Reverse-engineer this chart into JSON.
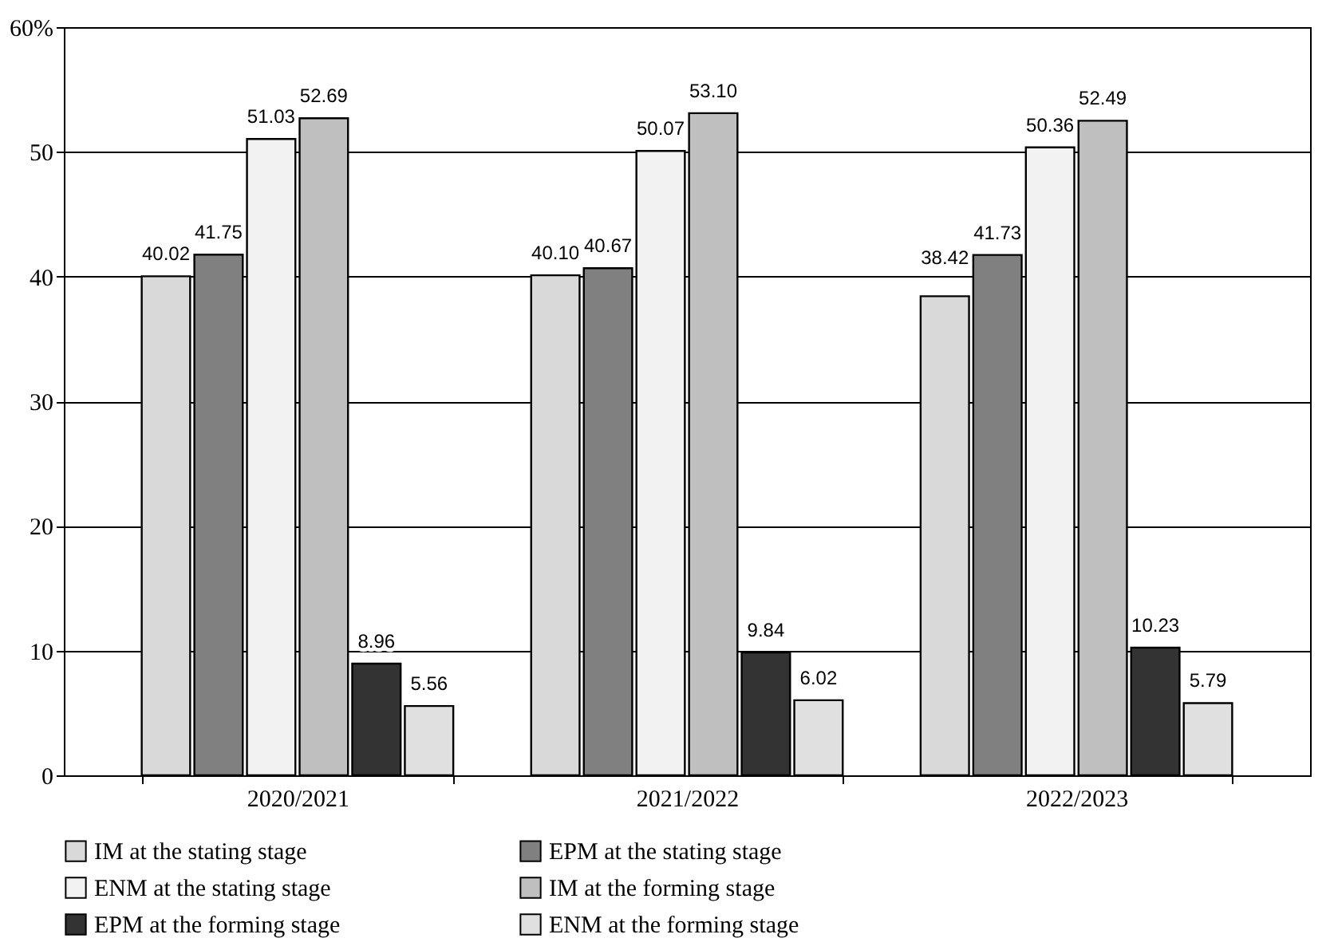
{
  "chart_data": {
    "type": "bar",
    "categories": [
      "2020/2021",
      "2021/2022",
      "2022/2023"
    ],
    "series": [
      {
        "name": "IM at the stating stage",
        "color": "#d9d9d9",
        "values": [
          40.02,
          40.1,
          38.42
        ],
        "value_labels": [
          "40.02",
          "40.10",
          "38.42"
        ]
      },
      {
        "name": "EPM at the stating stage",
        "color": "#808080",
        "values": [
          41.75,
          40.67,
          41.73
        ],
        "value_labels": [
          "41.75",
          "40.67",
          "41.73"
        ]
      },
      {
        "name": "ENM at the stating stage",
        "color": "#f2f2f2",
        "values": [
          51.03,
          50.07,
          50.36
        ],
        "value_labels": [
          "51.03",
          "50.07",
          "50.36"
        ]
      },
      {
        "name": "IM at the forming stage",
        "color": "#bfbfbf",
        "values": [
          52.69,
          53.1,
          52.49
        ],
        "value_labels": [
          "52.69",
          "53.10",
          "52.49"
        ]
      },
      {
        "name": "EPM at the forming stage",
        "color": "#333333",
        "values": [
          8.96,
          9.84,
          10.23
        ],
        "value_labels": [
          "8.96",
          "9.84",
          "10.23"
        ]
      },
      {
        "name": "ENM at the forming stage",
        "color": "#e0e0e0",
        "values": [
          5.56,
          6.02,
          5.79
        ],
        "value_labels": [
          "5.56",
          "6.02",
          "5.79"
        ]
      }
    ],
    "ylim": [
      0,
      60
    ],
    "yticks": [
      0,
      10,
      20,
      30,
      40,
      50,
      {
        "value": 60,
        "label": "60%"
      }
    ],
    "grid": "y",
    "legend": "bottom"
  }
}
